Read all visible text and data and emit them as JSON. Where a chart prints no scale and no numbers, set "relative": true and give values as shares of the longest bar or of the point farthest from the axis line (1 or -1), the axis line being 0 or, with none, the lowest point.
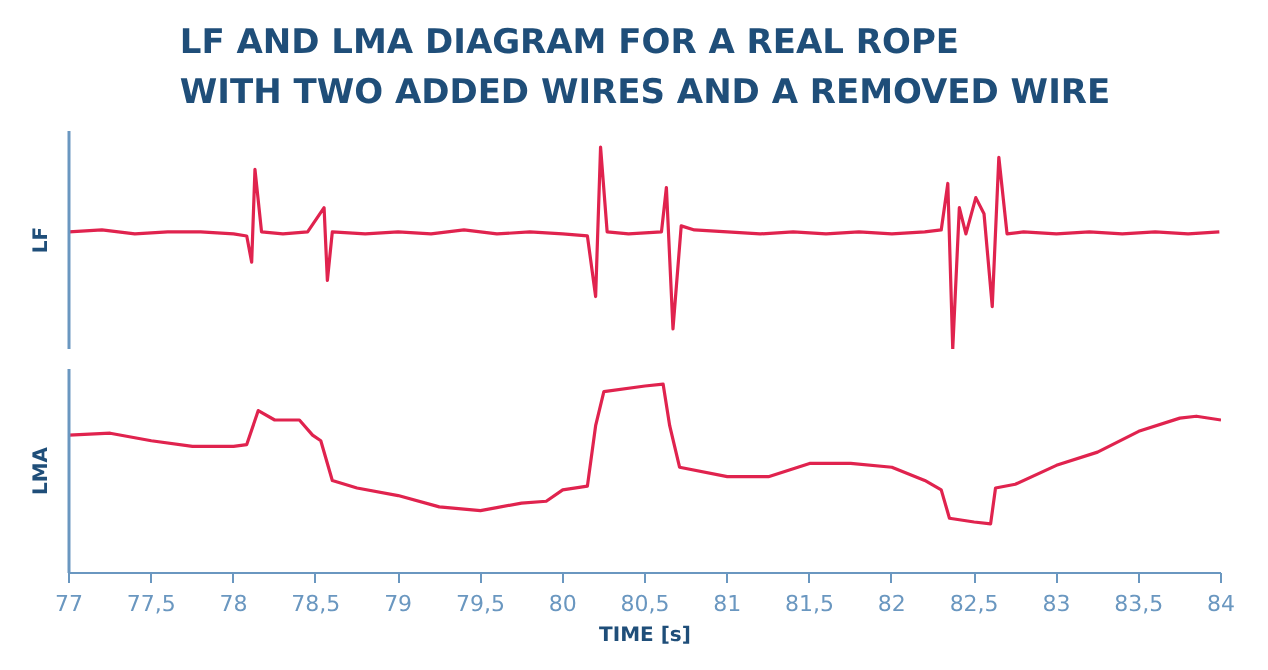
{
  "chart_data": [
    {
      "type": "line",
      "title": "LF AND LMA DIAGRAM FOR A REAL ROPE\nWITH TWO ADDED WIRES AND A REMOVED WIRE",
      "ylabel": "LF",
      "relative": true,
      "xlim": [
        77,
        84
      ],
      "tick_labels": false,
      "grid": false,
      "series": [
        {
          "color": "#e0234e",
          "x": [
            77,
            77.2,
            77.4,
            77.6,
            77.8,
            78.0,
            78.08,
            78.11,
            78.13,
            78.17,
            78.3,
            78.45,
            78.55,
            78.57,
            78.6,
            78.8,
            79.0,
            79.2,
            79.4,
            79.6,
            79.8,
            80.0,
            80.15,
            80.2,
            80.23,
            80.27,
            80.4,
            80.6,
            80.63,
            80.67,
            80.72,
            80.8,
            81.0,
            81.2,
            81.4,
            81.6,
            81.8,
            82.0,
            82.2,
            82.3,
            82.34,
            82.37,
            82.41,
            82.45,
            82.51,
            82.56,
            82.61,
            82.65,
            82.7,
            82.8,
            83.0,
            83.2,
            83.4,
            83.6,
            83.8,
            83.99
          ],
          "values": [
            0.58,
            0.59,
            0.57,
            0.58,
            0.58,
            0.57,
            0.56,
            0.43,
            0.89,
            0.58,
            0.57,
            0.58,
            0.7,
            0.34,
            0.58,
            0.57,
            0.58,
            0.57,
            0.59,
            0.57,
            0.58,
            0.57,
            0.56,
            0.26,
            1.0,
            0.58,
            0.57,
            0.58,
            0.8,
            0.1,
            0.61,
            0.59,
            0.58,
            0.57,
            0.58,
            0.57,
            0.58,
            0.57,
            0.58,
            0.59,
            0.82,
            0.0,
            0.7,
            0.57,
            0.75,
            0.67,
            0.21,
            0.95,
            0.57,
            0.58,
            0.57,
            0.58,
            0.57,
            0.58,
            0.57,
            0.58
          ]
        }
      ]
    },
    {
      "type": "line",
      "xlabel": "TIME [s]",
      "ylabel": "LMA",
      "relative": true,
      "xlim": [
        77,
        84
      ],
      "tick_labels": "x",
      "grid": false,
      "xticks": [
        {
          "value": 77,
          "label": "77"
        },
        {
          "value": 77.5,
          "label": "77,5"
        },
        {
          "value": 78,
          "label": "78"
        },
        {
          "value": 78.5,
          "label": "78,5"
        },
        {
          "value": 79,
          "label": "79"
        },
        {
          "value": 79.5,
          "label": "79,5"
        },
        {
          "value": 80,
          "label": "80"
        },
        {
          "value": 80.5,
          "label": "80,5"
        },
        {
          "value": 81,
          "label": "81"
        },
        {
          "value": 81.5,
          "label": "81,5"
        },
        {
          "value": 82,
          "label": "82"
        },
        {
          "value": 82.5,
          "label": "82,5"
        },
        {
          "value": 83,
          "label": "83"
        },
        {
          "value": 83.5,
          "label": "83,5"
        },
        {
          "value": 84,
          "label": "84"
        }
      ],
      "series": [
        {
          "color": "#e0234e",
          "x": [
            77,
            77.25,
            77.5,
            77.75,
            78.0,
            78.08,
            78.15,
            78.25,
            78.4,
            78.48,
            78.53,
            78.6,
            78.75,
            79.0,
            79.25,
            79.5,
            79.75,
            79.9,
            80.0,
            80.15,
            80.2,
            80.25,
            80.5,
            80.61,
            80.65,
            80.71,
            81.0,
            81.25,
            81.5,
            81.75,
            82.0,
            82.2,
            82.3,
            82.35,
            82.5,
            82.6,
            82.63,
            82.75,
            83.0,
            83.25,
            83.5,
            83.75,
            83.85,
            84
          ],
          "values": [
            0.73,
            0.74,
            0.7,
            0.67,
            0.67,
            0.68,
            0.86,
            0.81,
            0.81,
            0.73,
            0.7,
            0.49,
            0.45,
            0.41,
            0.35,
            0.33,
            0.37,
            0.38,
            0.44,
            0.46,
            0.78,
            0.96,
            0.99,
            1.0,
            0.78,
            0.56,
            0.51,
            0.51,
            0.58,
            0.58,
            0.56,
            0.49,
            0.44,
            0.29,
            0.27,
            0.26,
            0.45,
            0.47,
            0.57,
            0.64,
            0.75,
            0.82,
            0.83,
            0.81
          ]
        }
      ]
    }
  ]
}
